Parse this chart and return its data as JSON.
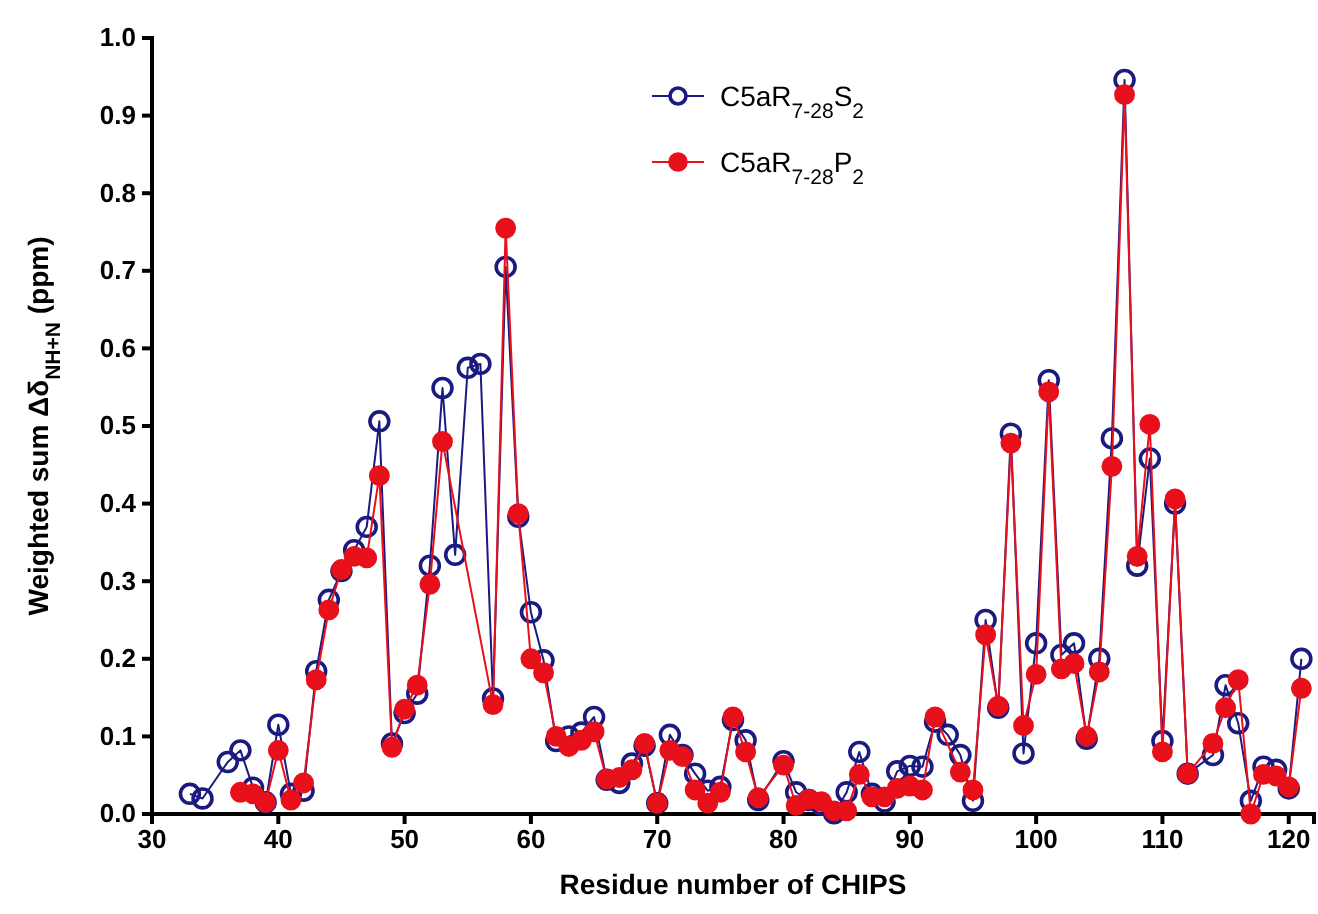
{
  "chart_data": {
    "type": "line",
    "xlabel": "Residue number of CHIPS",
    "ylabel": "Weighted sum  Δδ$_{NH+N}$ (ppm)",
    "xlim": [
      30,
      122
    ],
    "xticks": [
      30,
      40,
      50,
      60,
      70,
      80,
      90,
      100,
      110,
      120
    ],
    "ylim": [
      0,
      1
    ],
    "yticks": [
      {
        "value": 0,
        "label": "0.0"
      },
      {
        "value": 0.1,
        "label": "0.1"
      },
      {
        "value": 0.2,
        "label": "0.2"
      },
      {
        "value": 0.3,
        "label": "0.3"
      },
      {
        "value": 0.4,
        "label": "0.4"
      },
      {
        "value": 0.5,
        "label": "0.5"
      },
      {
        "value": 0.6,
        "label": "0.6"
      },
      {
        "value": 0.7,
        "label": "0.7"
      },
      {
        "value": 0.8,
        "label": "0.8"
      },
      {
        "value": 0.9,
        "label": "0.9"
      },
      {
        "value": 1,
        "label": "1.0"
      }
    ],
    "grid": false,
    "legend": "top",
    "marker": "circle",
    "line_style": "solid",
    "series": [
      {
        "name": "C5aR$_{7-28}$S$_{2}$",
        "color": "#1a1a80",
        "x": [
          33,
          34,
          36,
          37,
          38,
          39,
          40,
          41,
          42,
          43,
          44,
          45,
          46,
          47,
          48,
          49,
          50,
          51,
          52,
          53,
          54,
          55,
          56,
          57,
          58,
          59,
          60,
          61,
          62,
          63,
          64,
          65,
          66,
          67,
          68,
          69,
          70,
          71,
          72,
          73,
          74,
          75,
          76,
          77,
          78,
          80,
          81,
          82,
          83,
          84,
          85,
          86,
          87,
          88,
          89,
          90,
          91,
          92,
          93,
          94,
          95,
          96,
          97,
          98,
          99,
          100,
          101,
          102,
          103,
          104,
          105,
          106,
          107,
          108,
          109,
          110,
          111,
          112,
          114,
          115,
          116,
          117,
          118,
          119,
          120,
          121
        ],
        "values": [
          0.026,
          0.02,
          0.067,
          0.082,
          0.034,
          0.015,
          0.115,
          0.026,
          0.03,
          0.184,
          0.276,
          0.313,
          0.34,
          0.37,
          0.506,
          0.091,
          0.13,
          0.155,
          0.32,
          0.549,
          0.334,
          0.575,
          0.58,
          0.149,
          0.705,
          0.383,
          0.26,
          0.198,
          0.094,
          0.1,
          0.105,
          0.125,
          0.044,
          0.04,
          0.065,
          0.088,
          0.014,
          0.102,
          0.076,
          0.052,
          0.03,
          0.035,
          0.121,
          0.095,
          0.018,
          0.068,
          0.028,
          0.018,
          0.012,
          0.001,
          0.028,
          0.08,
          0.026,
          0.016,
          0.055,
          0.062,
          0.061,
          0.119,
          0.102,
          0.076,
          0.017,
          0.25,
          0.137,
          0.49,
          0.078,
          0.22,
          0.559,
          0.205,
          0.22,
          0.097,
          0.2,
          0.484,
          0.946,
          0.32,
          0.458,
          0.094,
          0.4,
          0.052,
          0.076,
          0.166,
          0.117,
          0.017,
          0.061,
          0.057,
          0.033,
          0.2
        ]
      },
      {
        "name": "C5aR$_{7-28}$P$_{2}$",
        "color": "#e8101a",
        "x": [
          37,
          38,
          39,
          40,
          41,
          42,
          43,
          44,
          45,
          46,
          47,
          48,
          49,
          50,
          51,
          52,
          53,
          57,
          58,
          59,
          60,
          61,
          62,
          63,
          64,
          65,
          66,
          67,
          68,
          69,
          70,
          71,
          72,
          73,
          74,
          75,
          76,
          77,
          78,
          80,
          81,
          82,
          83,
          84,
          85,
          86,
          87,
          88,
          89,
          90,
          91,
          92,
          94,
          95,
          96,
          97,
          98,
          99,
          100,
          101,
          102,
          103,
          104,
          105,
          106,
          107,
          108,
          109,
          110,
          111,
          112,
          114,
          115,
          116,
          117,
          118,
          119,
          120,
          121
        ],
        "values": [
          0.028,
          0.026,
          0.015,
          0.082,
          0.018,
          0.04,
          0.173,
          0.263,
          0.315,
          0.332,
          0.33,
          0.436,
          0.086,
          0.135,
          0.166,
          0.296,
          0.48,
          0.141,
          0.755,
          0.387,
          0.2,
          0.182,
          0.1,
          0.087,
          0.095,
          0.106,
          0.045,
          0.047,
          0.057,
          0.091,
          0.014,
          0.082,
          0.074,
          0.031,
          0.014,
          0.028,
          0.125,
          0.08,
          0.021,
          0.063,
          0.011,
          0.019,
          0.016,
          0.004,
          0.004,
          0.051,
          0.022,
          0.022,
          0.033,
          0.036,
          0.031,
          0.125,
          0.054,
          0.031,
          0.231,
          0.139,
          0.478,
          0.114,
          0.18,
          0.544,
          0.187,
          0.194,
          0.1,
          0.183,
          0.448,
          0.927,
          0.332,
          0.502,
          0.08,
          0.406,
          0.052,
          0.091,
          0.137,
          0.173,
          0,
          0.051,
          0.049,
          0.035,
          0.162
        ]
      }
    ]
  }
}
